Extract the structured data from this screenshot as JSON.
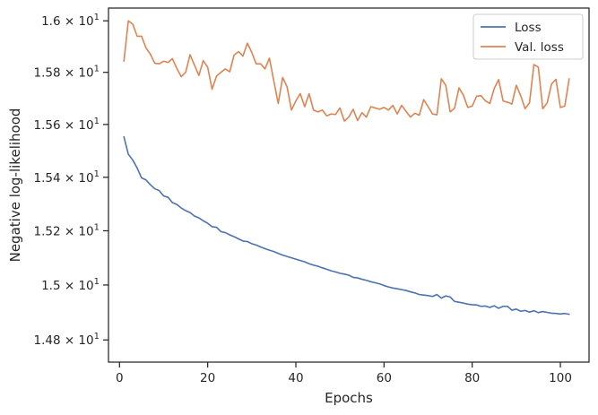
{
  "chart_data": {
    "type": "line",
    "xlabel": "Epochs",
    "ylabel": "Negative log-likelihood",
    "xlim": [
      -2.5,
      106.5
    ],
    "ylim": [
      14.72,
      16.05
    ],
    "y_scale": "log",
    "grid": false,
    "legend_position": "top-right",
    "x_ticks": [
      0,
      20,
      40,
      60,
      80,
      100
    ],
    "x_tick_labels": [
      "0",
      "20",
      "40",
      "60",
      "80",
      "100"
    ],
    "y_ticks": [
      {
        "value": 14.8,
        "mantissa": "1.48",
        "base": "10",
        "exp": "1"
      },
      {
        "value": 15.0,
        "mantissa": "1.5",
        "base": "10",
        "exp": "1"
      },
      {
        "value": 15.2,
        "mantissa": "1.52",
        "base": "10",
        "exp": "1"
      },
      {
        "value": 15.4,
        "mantissa": "1.54",
        "base": "10",
        "exp": "1"
      },
      {
        "value": 15.6,
        "mantissa": "1.56",
        "base": "10",
        "exp": "1"
      },
      {
        "value": 15.8,
        "mantissa": "1.58",
        "base": "10",
        "exp": "1"
      },
      {
        "value": 16.0,
        "mantissa": "1.6",
        "base": "10",
        "exp": "1"
      }
    ],
    "series": [
      {
        "name": "Loss",
        "color": "#4c72b0",
        "x": [
          1,
          2,
          3,
          4,
          5,
          6,
          7,
          8,
          9,
          10,
          11,
          12,
          13,
          14,
          15,
          16,
          17,
          18,
          19,
          20,
          21,
          22,
          23,
          24,
          25,
          26,
          27,
          28,
          29,
          30,
          31,
          32,
          33,
          34,
          35,
          36,
          37,
          38,
          39,
          40,
          41,
          42,
          43,
          44,
          45,
          46,
          47,
          48,
          49,
          50,
          51,
          52,
          53,
          54,
          55,
          56,
          57,
          58,
          59,
          60,
          61,
          62,
          63,
          64,
          65,
          66,
          67,
          68,
          69,
          70,
          71,
          72,
          73,
          74,
          75,
          76,
          77,
          78,
          79,
          80,
          81,
          82,
          83,
          84,
          85,
          86,
          87,
          88,
          89,
          90,
          91,
          92,
          93,
          94,
          95,
          96,
          97,
          98,
          99,
          100,
          101,
          102
        ],
        "values": [
          15.553,
          15.487,
          15.465,
          15.435,
          15.398,
          15.39,
          15.372,
          15.357,
          15.35,
          15.33,
          15.325,
          15.305,
          15.298,
          15.285,
          15.275,
          15.268,
          15.255,
          15.248,
          15.237,
          15.228,
          15.215,
          15.213,
          15.197,
          15.193,
          15.185,
          15.178,
          15.17,
          15.162,
          15.16,
          15.152,
          15.147,
          15.14,
          15.134,
          15.128,
          15.123,
          15.116,
          15.11,
          15.105,
          15.1,
          15.095,
          15.09,
          15.085,
          15.078,
          15.073,
          15.069,
          15.063,
          15.058,
          15.052,
          15.048,
          15.043,
          15.04,
          15.036,
          15.028,
          15.026,
          15.021,
          15.017,
          15.012,
          15.008,
          15.004,
          14.998,
          14.993,
          14.989,
          14.986,
          14.983,
          14.98,
          14.975,
          14.971,
          14.965,
          14.963,
          14.961,
          14.958,
          14.965,
          14.952,
          14.96,
          14.956,
          14.94,
          14.937,
          14.934,
          14.93,
          14.928,
          14.927,
          14.922,
          14.923,
          14.918,
          14.924,
          14.915,
          14.922,
          14.922,
          14.908,
          14.912,
          14.904,
          14.907,
          14.901,
          14.906,
          14.899,
          14.903,
          14.9,
          14.897,
          14.896,
          14.894,
          14.896,
          14.893
        ]
      },
      {
        "name": "Val. loss",
        "color": "#dd8452",
        "x": [
          1,
          2,
          3,
          4,
          5,
          6,
          7,
          8,
          9,
          10,
          11,
          12,
          13,
          14,
          15,
          16,
          17,
          18,
          19,
          20,
          21,
          22,
          23,
          24,
          25,
          26,
          27,
          28,
          29,
          30,
          31,
          32,
          33,
          34,
          35,
          36,
          37,
          38,
          39,
          40,
          41,
          42,
          43,
          44,
          45,
          46,
          47,
          48,
          49,
          50,
          51,
          52,
          53,
          54,
          55,
          56,
          57,
          58,
          59,
          60,
          61,
          62,
          63,
          64,
          65,
          66,
          67,
          68,
          69,
          70,
          71,
          72,
          73,
          74,
          75,
          76,
          77,
          78,
          79,
          80,
          81,
          82,
          83,
          84,
          85,
          86,
          87,
          88,
          89,
          90,
          91,
          92,
          93,
          94,
          95,
          96,
          97,
          98,
          99,
          100,
          101,
          102
        ],
        "values": [
          15.843,
          16.0,
          15.987,
          15.94,
          15.94,
          15.895,
          15.87,
          15.835,
          15.833,
          15.843,
          15.838,
          15.853,
          15.815,
          15.783,
          15.8,
          15.868,
          15.828,
          15.788,
          15.845,
          15.82,
          15.735,
          15.785,
          15.8,
          15.813,
          15.802,
          15.867,
          15.88,
          15.863,
          15.913,
          15.877,
          15.833,
          15.833,
          15.813,
          15.855,
          15.767,
          15.68,
          15.78,
          15.745,
          15.655,
          15.69,
          15.718,
          15.668,
          15.718,
          15.655,
          15.648,
          15.655,
          15.633,
          15.64,
          15.638,
          15.663,
          15.613,
          15.628,
          15.658,
          15.615,
          15.645,
          15.628,
          15.668,
          15.663,
          15.658,
          15.665,
          15.655,
          15.673,
          15.64,
          15.673,
          15.65,
          15.628,
          15.643,
          15.635,
          15.695,
          15.668,
          15.64,
          15.637,
          15.775,
          15.75,
          15.648,
          15.662,
          15.74,
          15.712,
          15.665,
          15.67,
          15.708,
          15.71,
          15.69,
          15.68,
          15.738,
          15.772,
          15.69,
          15.685,
          15.678,
          15.75,
          15.71,
          15.66,
          15.683,
          15.83,
          15.82,
          15.66,
          15.682,
          15.755,
          15.773,
          15.665,
          15.67,
          15.775
        ]
      }
    ]
  }
}
